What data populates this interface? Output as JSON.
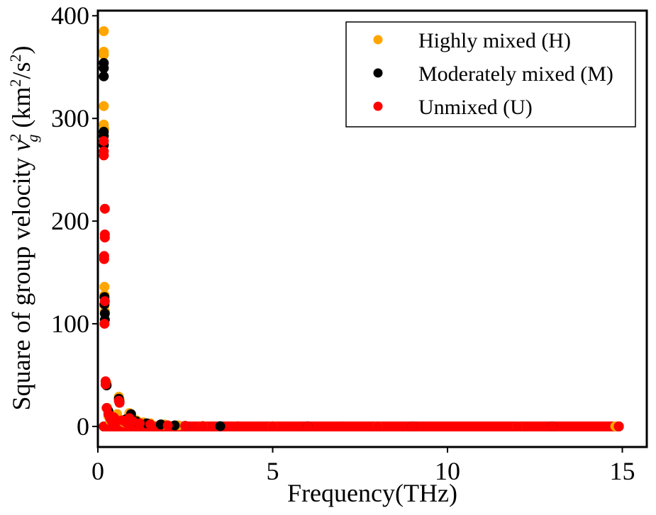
{
  "chart_data": {
    "type": "scatter",
    "title": "",
    "xlabel": "Frequency(THz)",
    "ylabel": "Square of group velocity",
    "ylabel_symbol": "v",
    "ylabel_symbol_sub": "g",
    "ylabel_symbol_sup": "2",
    "ylabel_unit_open": "(km",
    "ylabel_unit_sup1": "2",
    "ylabel_unit_mid": "/s",
    "ylabel_unit_sup2": "2",
    "ylabel_unit_close": ")",
    "xlim": [
      0,
      15.7
    ],
    "ylim": [
      -20,
      405
    ],
    "xticks": [
      0,
      5,
      10,
      15
    ],
    "yticks": [
      0,
      100,
      200,
      300,
      400
    ],
    "grid": false,
    "legend_position": "top-right",
    "series": [
      {
        "name": "Highly mixed (H)",
        "color": "#FFA500",
        "points": [
          [
            0.17,
            385
          ],
          [
            0.17,
            365
          ],
          [
            0.17,
            362
          ],
          [
            0.17,
            312
          ],
          [
            0.17,
            294
          ],
          [
            0.18,
            290
          ],
          [
            0.19,
            136
          ],
          [
            0.19,
            128
          ],
          [
            0.19,
            118
          ],
          [
            0.2,
            112
          ],
          [
            0.25,
            42
          ],
          [
            0.27,
            18
          ],
          [
            0.3,
            10
          ],
          [
            0.35,
            6
          ],
          [
            0.45,
            9
          ],
          [
            0.55,
            12
          ],
          [
            0.6,
            29
          ],
          [
            0.62,
            26
          ],
          [
            0.75,
            4
          ],
          [
            0.9,
            13
          ],
          [
            0.95,
            10
          ],
          [
            1.1,
            6
          ],
          [
            1.3,
            4
          ],
          [
            1.5,
            3
          ],
          [
            1.9,
            2
          ],
          [
            2.3,
            1
          ],
          [
            3,
            0.5
          ],
          [
            5,
            0.3
          ],
          [
            8,
            0.2
          ],
          [
            12,
            0.1
          ],
          [
            14.8,
            0.1
          ]
        ]
      },
      {
        "name": "Moderately mixed (M)",
        "color": "#000000",
        "points": [
          [
            0.17,
            354
          ],
          [
            0.17,
            349
          ],
          [
            0.17,
            341
          ],
          [
            0.17,
            287
          ],
          [
            0.17,
            283
          ],
          [
            0.17,
            274
          ],
          [
            0.19,
            126
          ],
          [
            0.19,
            119
          ],
          [
            0.2,
            110
          ],
          [
            0.2,
            104
          ],
          [
            0.25,
            40
          ],
          [
            0.3,
            15
          ],
          [
            0.4,
            8
          ],
          [
            0.6,
            27
          ],
          [
            0.62,
            24
          ],
          [
            0.8,
            7
          ],
          [
            0.95,
            12
          ],
          [
            1.1,
            5
          ],
          [
            1.4,
            3
          ],
          [
            1.8,
            2
          ],
          [
            2.2,
            1
          ],
          [
            2.5,
            0.5
          ],
          [
            3.5,
            0.3
          ],
          [
            6,
            0.2
          ],
          [
            9,
            0.1
          ],
          [
            13,
            0.1
          ],
          [
            14.9,
            0.05
          ]
        ]
      },
      {
        "name": "Unmixed (U)",
        "color": "#FF0000",
        "points": [
          [
            0.17,
            278
          ],
          [
            0.17,
            268
          ],
          [
            0.17,
            264
          ],
          [
            0.2,
            212
          ],
          [
            0.2,
            187
          ],
          [
            0.2,
            184
          ],
          [
            0.18,
            166
          ],
          [
            0.18,
            163
          ],
          [
            0.2,
            122
          ],
          [
            0.19,
            100
          ],
          [
            0.22,
            44
          ],
          [
            0.22,
            41
          ],
          [
            0.25,
            18
          ],
          [
            0.3,
            12
          ],
          [
            0.35,
            8
          ],
          [
            0.4,
            5
          ],
          [
            0.45,
            9
          ],
          [
            0.5,
            7
          ],
          [
            0.6,
            25
          ],
          [
            0.62,
            23
          ],
          [
            0.7,
            6
          ],
          [
            0.8,
            4
          ],
          [
            0.9,
            8
          ],
          [
            1.0,
            5
          ],
          [
            1.2,
            3
          ],
          [
            1.5,
            2
          ],
          [
            2.0,
            1
          ],
          [
            2.5,
            0.5
          ],
          [
            3.0,
            0.3
          ],
          [
            4.0,
            0.2
          ],
          [
            5.0,
            0.1
          ],
          [
            6.0,
            0.1
          ],
          [
            7.0,
            0.1
          ],
          [
            8.0,
            0.05
          ],
          [
            9.0,
            0.05
          ],
          [
            10.0,
            0.05
          ],
          [
            11.0,
            0.05
          ],
          [
            12.0,
            0.05
          ],
          [
            13.0,
            0.05
          ],
          [
            14.0,
            0.05
          ],
          [
            14.9,
            0.05
          ]
        ]
      }
    ]
  }
}
